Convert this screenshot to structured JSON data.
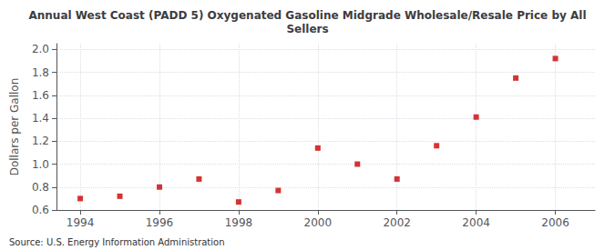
{
  "chart_data": {
    "type": "scatter",
    "title": "Annual West Coast (PADD 5) Oxygenated Gasoline Midgrade Wholesale/Resale Price by All\nSellers",
    "ylabel": "Dollars per Gallon",
    "source": "Source: U.S. Energy Information Administration",
    "x": [
      1994,
      1995,
      1996,
      1997,
      1998,
      1999,
      2000,
      2001,
      2002,
      2003,
      2004,
      2005,
      2006
    ],
    "values": [
      0.7,
      0.72,
      0.8,
      0.87,
      0.67,
      0.77,
      1.14,
      1.0,
      0.87,
      1.16,
      1.41,
      1.75,
      1.92
    ],
    "color": "#cc0000",
    "marker": "square",
    "xlim": [
      1993.4,
      2007.0
    ],
    "xticks": [
      1994,
      1996,
      1998,
      2000,
      2002,
      2004,
      2006
    ],
    "ylim": [
      0.6,
      2.05
    ],
    "yticks": [
      0.6,
      0.8,
      {
        "value": 1.0,
        "label": "1.0"
      },
      1.2,
      1.4,
      1.6,
      1.8,
      {
        "value": 2.0,
        "label": "2.0"
      }
    ],
    "grid": true
  }
}
